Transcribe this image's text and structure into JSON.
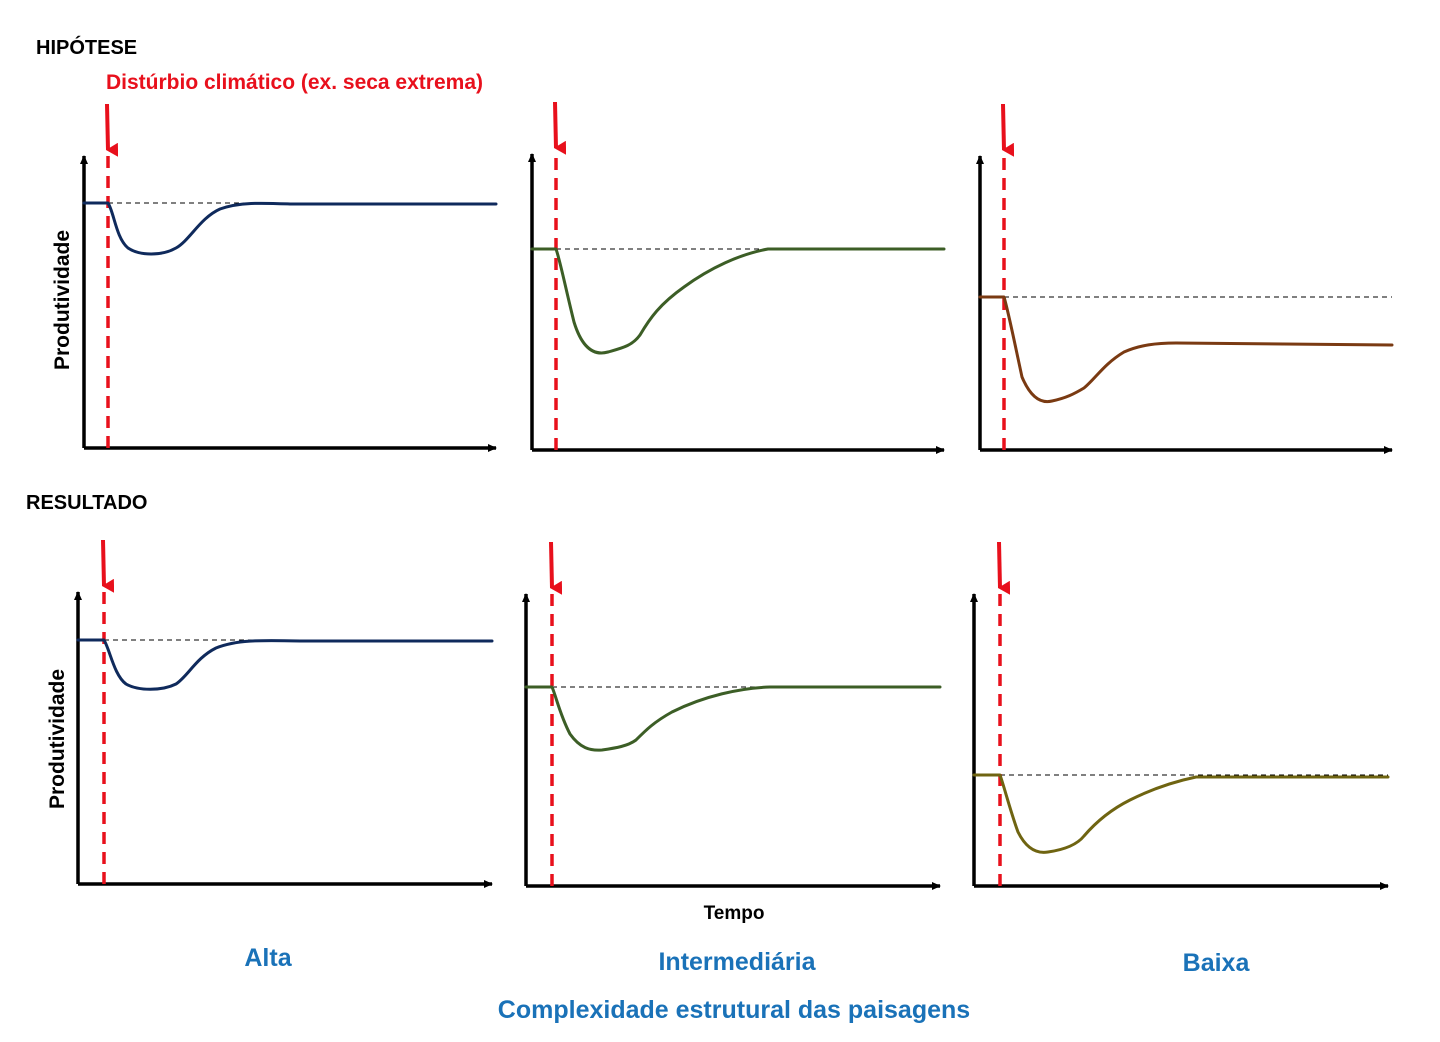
{
  "labels": {
    "hypothesis": "HIPÓTESE",
    "result": "RESULTADO",
    "disturbance": "Distúrbio climático (ex. seca extrema)",
    "ylabel": "Produtividade",
    "xlabel": "Tempo",
    "columns": [
      "Alta",
      "Intermediária",
      "Baixa"
    ],
    "footer": "Complexidade estrutural das paisagens"
  },
  "colors": {
    "label_black": "#000000",
    "disturbance_red": "#e8101c",
    "title_blue": "#1a72b8",
    "baseline_dashed": "#000000",
    "alta": "#0f2a5c",
    "intermediaria": "#3c5e26",
    "baixa_hipotese": "#7a3a12",
    "baixa_resultado": "#6f6411"
  },
  "panels": [
    {
      "row": "hipotese",
      "column": "Alta",
      "color_key": "alta"
    },
    {
      "row": "hipotese",
      "column": "Intermediária",
      "color_key": "intermediaria"
    },
    {
      "row": "hipotese",
      "column": "Baixa",
      "color_key": "baixa_hipotese"
    },
    {
      "row": "resultado",
      "column": "Alta",
      "color_key": "alta"
    },
    {
      "row": "resultado",
      "column": "Intermediária",
      "color_key": "intermediaria"
    },
    {
      "row": "resultado",
      "column": "Baixa",
      "color_key": "baixa_resultado"
    }
  ]
}
